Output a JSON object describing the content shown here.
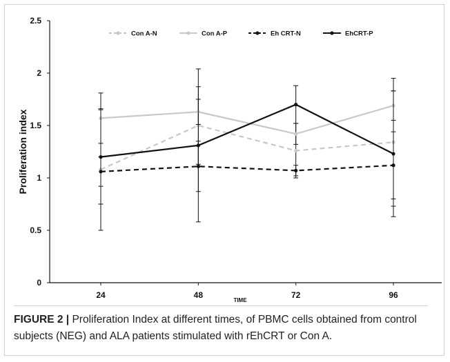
{
  "chart_data": {
    "type": "line",
    "title": "",
    "xlabel": "TIME",
    "ylabel": "Proliferation index",
    "categories": [
      "24",
      "48",
      "72",
      "96"
    ],
    "ylim": [
      0,
      2.5
    ],
    "yticks": [
      "0",
      "0.5",
      "1",
      "1.5",
      "2",
      "2.5"
    ],
    "grid": false,
    "legend_position": "top",
    "series": [
      {
        "name": "Con A-N",
        "color": "#c8c8c8",
        "dash": true,
        "values": [
          1.08,
          1.5,
          1.26,
          1.34
        ],
        "errors": [
          0.58,
          0.37,
          0.26,
          0.61
        ]
      },
      {
        "name": "Con A-P",
        "color": "#c8c8c8",
        "dash": false,
        "values": [
          1.57,
          1.63,
          1.42,
          1.69
        ],
        "errors": [
          0.24,
          0.12,
          0.1,
          0.14
        ]
      },
      {
        "name": "Eh CRT-N",
        "color": "#111111",
        "dash": true,
        "values": [
          1.06,
          1.11,
          1.07,
          1.12
        ],
        "errors": [
          0.14,
          0.24,
          0.05,
          0.32
        ]
      },
      {
        "name": "EhCRT-P",
        "color": "#111111",
        "dash": false,
        "values": [
          1.2,
          1.31,
          1.7,
          1.23
        ],
        "errors": [
          0.45,
          0.73,
          0.18,
          0.6
        ]
      }
    ]
  },
  "caption": {
    "label": "FIGURE 2 |",
    "text": " Proliferation Index at different times, of PBMC cells obtained from control subjects (NEG) and ALA patients stimulated with rEhCRT or Con A."
  }
}
